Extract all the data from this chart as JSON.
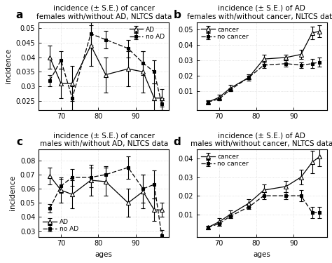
{
  "panel_a": {
    "title": "incidence (± S.E.) of cancer\nfemales with/without AD, NLTCS data",
    "ylabel": "incidence",
    "xlabel": "",
    "ylim": [
      0.022,
      0.052
    ],
    "yticks": [
      0.025,
      0.03,
      0.035,
      0.04,
      0.045,
      0.05
    ],
    "legend_loc": "upper right",
    "AD": {
      "x": [
        67,
        70,
        73,
        78,
        82,
        88,
        92,
        95,
        97
      ],
      "y": [
        0.04,
        0.031,
        0.031,
        0.044,
        0.034,
        0.036,
        0.035,
        0.026,
        0.026
      ],
      "yerr": [
        0.004,
        0.005,
        0.006,
        0.007,
        0.006,
        0.006,
        0.007,
        0.005,
        0.003
      ],
      "label": "AD",
      "linestyle": "-",
      "marker": "^"
    },
    "noAD": {
      "x": [
        67,
        70,
        73,
        78,
        82,
        88,
        92,
        95,
        97
      ],
      "y": [
        0.032,
        0.039,
        0.026,
        0.048,
        0.046,
        0.043,
        0.038,
        0.035,
        0.024
      ],
      "yerr": [
        0.002,
        0.003,
        0.004,
        0.004,
        0.003,
        0.003,
        0.004,
        0.004,
        0.002
      ],
      "label": "no AD",
      "linestyle": "--",
      "marker": "s"
    }
  },
  "panel_b": {
    "title": "incidence (± S.E.) of AD\nfemales with/without cancer, NLTCS data",
    "ylabel": "",
    "xlabel": "",
    "ylim": [
      -0.002,
      0.055
    ],
    "yticks": [
      0.01,
      0.02,
      0.03,
      0.04,
      0.05
    ],
    "legend_loc": "upper left",
    "cancer": {
      "x": [
        67,
        70,
        73,
        78,
        82,
        88,
        92,
        95,
        97
      ],
      "y": [
        0.003,
        0.006,
        0.012,
        0.019,
        0.031,
        0.032,
        0.034,
        0.048,
        0.049
      ],
      "yerr": [
        0.001,
        0.002,
        0.002,
        0.002,
        0.003,
        0.002,
        0.003,
        0.004,
        0.004
      ],
      "label": "cancer",
      "linestyle": "-",
      "marker": "^"
    },
    "noCancer": {
      "x": [
        67,
        70,
        73,
        78,
        82,
        88,
        92,
        95,
        97
      ],
      "y": [
        0.003,
        0.005,
        0.011,
        0.019,
        0.027,
        0.028,
        0.027,
        0.028,
        0.029
      ],
      "yerr": [
        0.0005,
        0.001,
        0.001,
        0.001,
        0.002,
        0.002,
        0.002,
        0.003,
        0.003
      ],
      "label": "no cancer",
      "linestyle": "--",
      "marker": "s"
    }
  },
  "panel_c": {
    "title": "incidence (± S.E.) of cancer\nmales with/without AD, NLTCS data",
    "ylabel": "incidence",
    "xlabel": "ages",
    "ylim": [
      0.026,
      0.088
    ],
    "yticks": [
      0.03,
      0.04,
      0.05,
      0.06,
      0.07,
      0.08
    ],
    "legend_loc": "lower left",
    "AD": {
      "x": [
        67,
        70,
        73,
        78,
        82,
        88,
        92,
        95,
        97
      ],
      "y": [
        0.069,
        0.059,
        0.056,
        0.066,
        0.065,
        0.05,
        0.058,
        0.045,
        0.045
      ],
      "yerr": [
        0.006,
        0.009,
        0.01,
        0.011,
        0.01,
        0.01,
        0.012,
        0.008,
        0.005
      ],
      "label": "AD",
      "linestyle": "-",
      "marker": "^"
    },
    "noAD": {
      "x": [
        67,
        70,
        73,
        78,
        82,
        88,
        92,
        95,
        97
      ],
      "y": [
        0.046,
        0.062,
        0.068,
        0.068,
        0.07,
        0.075,
        0.06,
        0.063,
        0.027
      ],
      "yerr": [
        0.003,
        0.005,
        0.006,
        0.007,
        0.006,
        0.008,
        0.01,
        0.01,
        0.004
      ],
      "label": "no AD",
      "linestyle": "--",
      "marker": "s"
    }
  },
  "panel_d": {
    "title": "incidence (± S.E.) of AD\nmales with/without cancer, NLTCS data",
    "ylabel": "",
    "xlabel": "ages",
    "ylim": [
      -0.002,
      0.045
    ],
    "yticks": [
      0.01,
      0.02,
      0.03,
      0.04
    ],
    "legend_loc": "upper left",
    "cancer": {
      "x": [
        67,
        70,
        73,
        78,
        82,
        88,
        92,
        95,
        97
      ],
      "y": [
        0.003,
        0.006,
        0.01,
        0.016,
        0.023,
        0.025,
        0.03,
        0.038,
        0.041
      ],
      "yerr": [
        0.001,
        0.002,
        0.002,
        0.002,
        0.003,
        0.003,
        0.004,
        0.006,
        0.005
      ],
      "label": "cancer",
      "linestyle": "-",
      "marker": "^"
    },
    "noCancer": {
      "x": [
        67,
        70,
        73,
        78,
        82,
        88,
        92,
        95,
        97
      ],
      "y": [
        0.003,
        0.005,
        0.009,
        0.014,
        0.02,
        0.02,
        0.02,
        0.011,
        0.011
      ],
      "yerr": [
        0.0005,
        0.001,
        0.001,
        0.001,
        0.002,
        0.002,
        0.003,
        0.003,
        0.003
      ],
      "label": "no cancer",
      "linestyle": "--",
      "marker": "s"
    }
  },
  "xticks": [
    70,
    80,
    90
  ],
  "xlim": [
    64,
    99
  ],
  "background_color": "white",
  "grid_color": "#d0d0d0",
  "label_fontsize": 7.5,
  "title_fontsize": 7.5,
  "tick_fontsize": 7,
  "panel_labels": [
    "a",
    "b",
    "c",
    "d"
  ]
}
